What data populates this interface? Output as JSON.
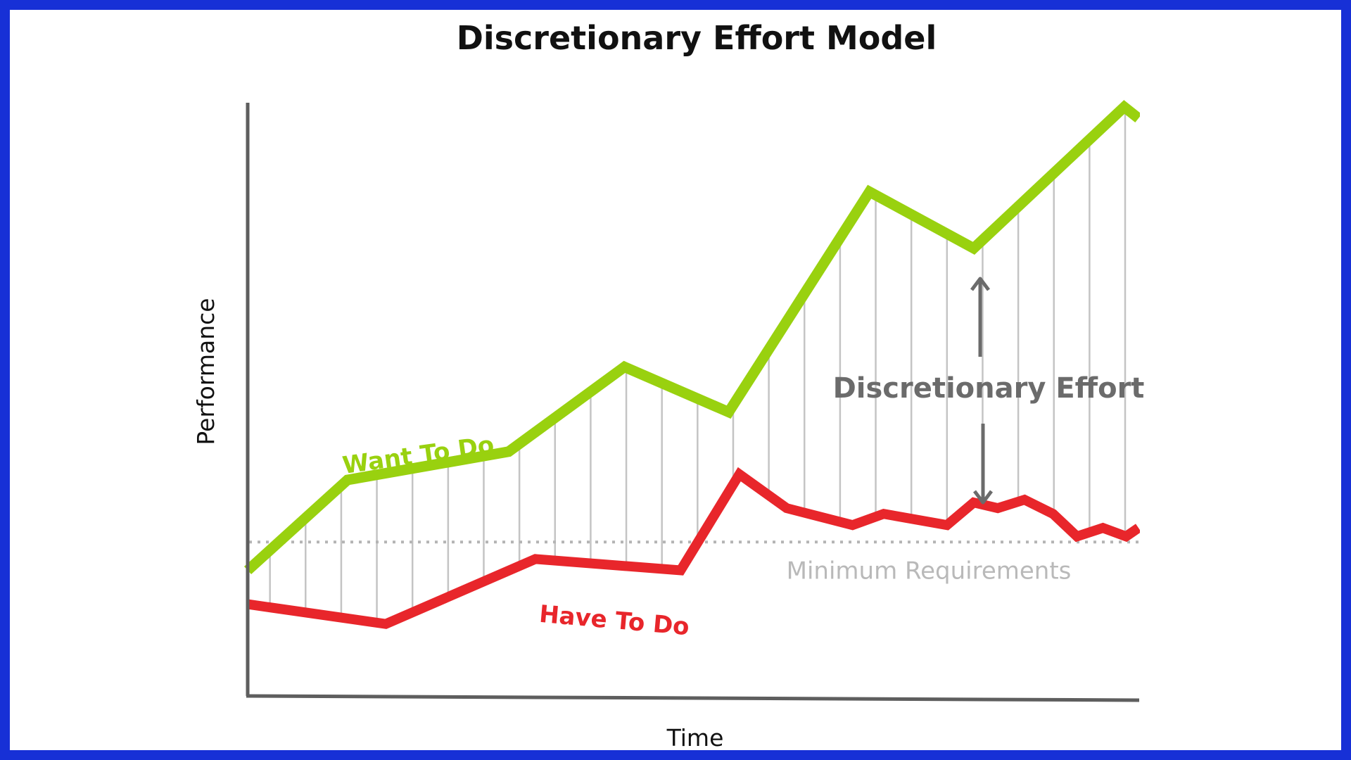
{
  "chart_data": {
    "type": "line",
    "title": "Discretionary Effort Model",
    "xlabel": "Time",
    "ylabel": "Performance",
    "xlim": [
      0,
      100
    ],
    "ylim": [
      0,
      100
    ],
    "grid": false,
    "series": [
      {
        "name": "Want To Do",
        "color": "#99d10f",
        "x": [
          0,
          11.2,
          29.3,
          42.3,
          54.0,
          69.8,
          81.5,
          98.4,
          100
        ],
        "y": [
          18,
          34,
          39,
          54,
          46,
          85,
          75,
          100,
          98
        ]
      },
      {
        "name": "Have To Do",
        "color": "#e8262b",
        "x": [
          0,
          15.5,
          32.3,
          48.6,
          55.2,
          60.5,
          67.9,
          71.4,
          78.5,
          81.5,
          84.2,
          87.2,
          90.4,
          93.1,
          96.0,
          98.6,
          100
        ],
        "y": [
          12,
          8.5,
          20,
          18,
          35,
          29,
          26,
          28,
          26,
          30,
          29,
          30.5,
          28,
          24,
          25.5,
          24,
          25.5
        ]
      }
    ],
    "reference_line": {
      "label": "Minimum Requirements",
      "y": 23
    },
    "annotations": {
      "gap_label": "Discretionary Effort"
    }
  }
}
